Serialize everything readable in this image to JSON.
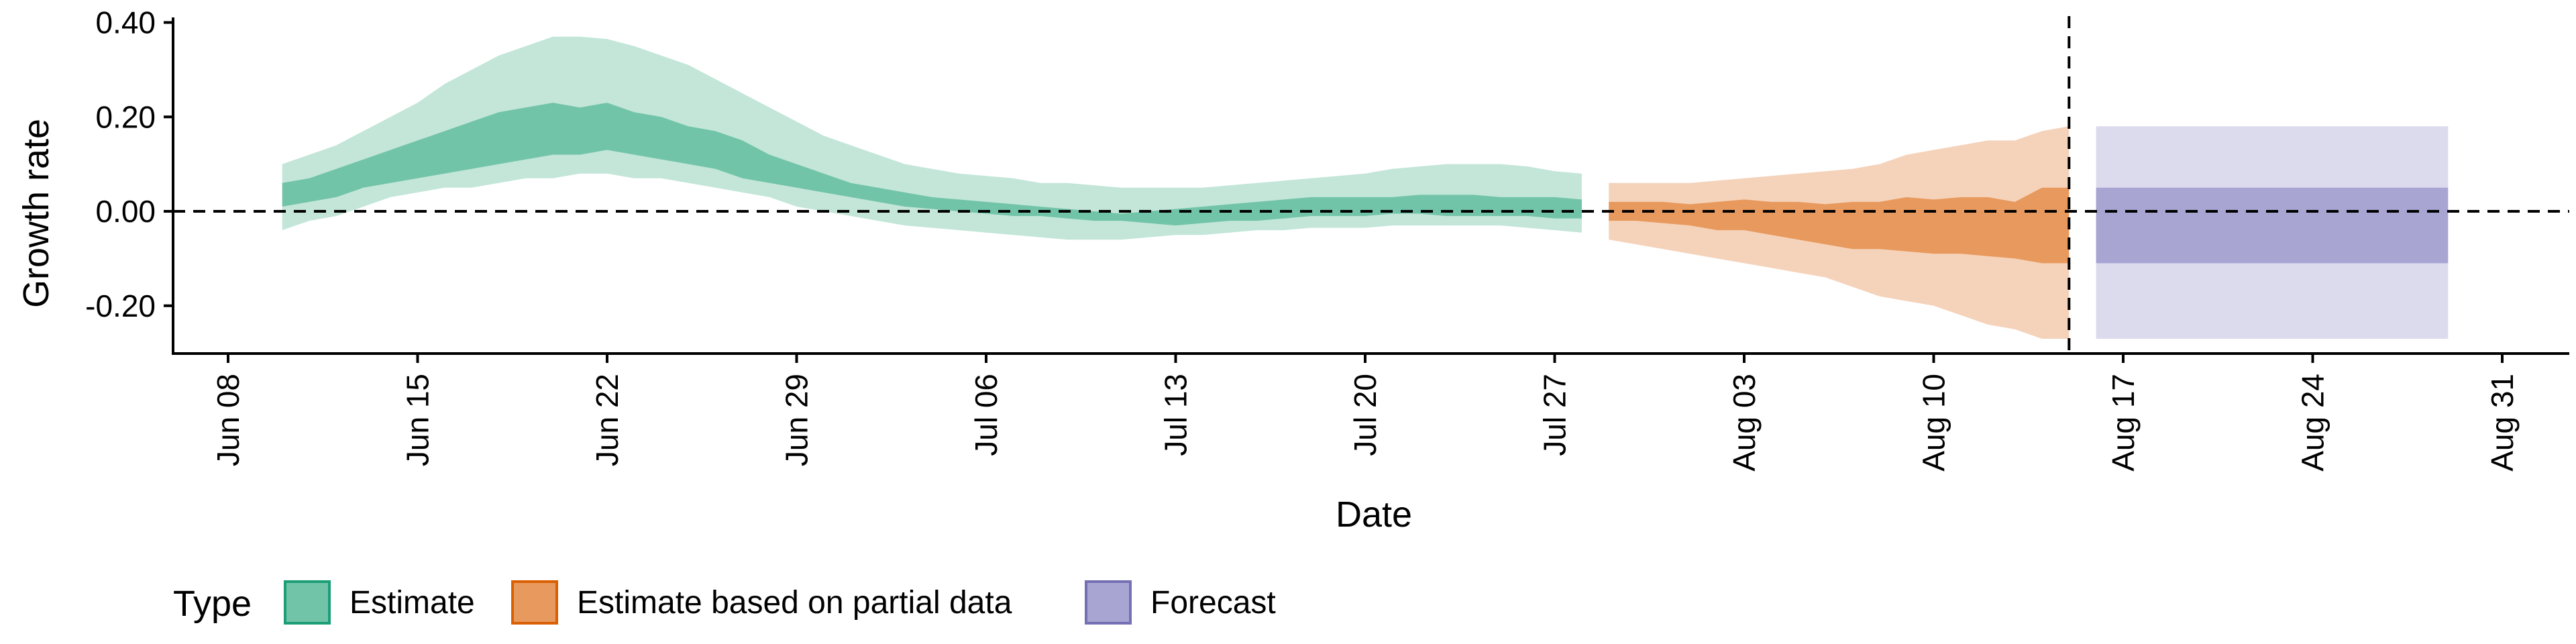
{
  "chart_data": {
    "type": "area",
    "xlabel": "Date",
    "ylabel": "Growth rate",
    "x_type": "date",
    "xlim": [
      "2020-06-05",
      "2020-09-01"
    ],
    "ylim": [
      -0.3,
      0.4
    ],
    "y_ticks": [
      {
        "value": 0.4,
        "label": "0.40"
      },
      {
        "value": 0.2,
        "label": "0.20"
      },
      {
        "value": 0.0,
        "label": "0.00"
      },
      {
        "value": -0.2,
        "label": "-0.20"
      }
    ],
    "x_ticks": [
      {
        "date": "2020-06-08",
        "label": "Jun 08"
      },
      {
        "date": "2020-06-15",
        "label": "Jun 15"
      },
      {
        "date": "2020-06-22",
        "label": "Jun 22"
      },
      {
        "date": "2020-06-29",
        "label": "Jun 29"
      },
      {
        "date": "2020-07-06",
        "label": "Jul 06"
      },
      {
        "date": "2020-07-13",
        "label": "Jul 13"
      },
      {
        "date": "2020-07-20",
        "label": "Jul 20"
      },
      {
        "date": "2020-07-27",
        "label": "Jul 27"
      },
      {
        "date": "2020-08-03",
        "label": "Aug 03"
      },
      {
        "date": "2020-08-10",
        "label": "Aug 10"
      },
      {
        "date": "2020-08-17",
        "label": "Aug 17"
      },
      {
        "date": "2020-08-24",
        "label": "Aug 24"
      },
      {
        "date": "2020-08-31",
        "label": "Aug 31"
      }
    ],
    "reference_lines": {
      "horizontal_y": 0.0,
      "vertical_date": "2020-08-15"
    },
    "legend": {
      "title": "Type",
      "position": "bottom",
      "entries": [
        {
          "label": "Estimate",
          "fill": "#72c4a8",
          "border": "#1b9e77"
        },
        {
          "label": "Estimate based on partial data",
          "fill": "#e89a5e",
          "border": "#d95f02"
        },
        {
          "label": "Forecast",
          "fill": "#a9a5d3",
          "border": "#7570b3"
        }
      ]
    },
    "series": [
      {
        "name": "Estimate",
        "color_outer": "#c3e6d9",
        "color_inner": "#72c4a8",
        "x": [
          "2020-06-10",
          "2020-06-11",
          "2020-06-12",
          "2020-06-13",
          "2020-06-14",
          "2020-06-15",
          "2020-06-16",
          "2020-06-17",
          "2020-06-18",
          "2020-06-19",
          "2020-06-20",
          "2020-06-21",
          "2020-06-22",
          "2020-06-23",
          "2020-06-24",
          "2020-06-25",
          "2020-06-26",
          "2020-06-27",
          "2020-06-28",
          "2020-06-29",
          "2020-06-30",
          "2020-07-01",
          "2020-07-02",
          "2020-07-03",
          "2020-07-04",
          "2020-07-05",
          "2020-07-06",
          "2020-07-07",
          "2020-07-08",
          "2020-07-09",
          "2020-07-10",
          "2020-07-11",
          "2020-07-12",
          "2020-07-13",
          "2020-07-14",
          "2020-07-15",
          "2020-07-16",
          "2020-07-17",
          "2020-07-18",
          "2020-07-19",
          "2020-07-20",
          "2020-07-21",
          "2020-07-22",
          "2020-07-23",
          "2020-07-24",
          "2020-07-25",
          "2020-07-26",
          "2020-07-27",
          "2020-07-28"
        ],
        "outer_upper": [
          0.1,
          0.12,
          0.14,
          0.17,
          0.2,
          0.23,
          0.27,
          0.3,
          0.33,
          0.35,
          0.37,
          0.37,
          0.365,
          0.35,
          0.33,
          0.31,
          0.28,
          0.25,
          0.22,
          0.19,
          0.16,
          0.14,
          0.12,
          0.1,
          0.09,
          0.08,
          0.075,
          0.07,
          0.06,
          0.06,
          0.055,
          0.05,
          0.05,
          0.05,
          0.05,
          0.055,
          0.06,
          0.065,
          0.07,
          0.075,
          0.08,
          0.09,
          0.095,
          0.1,
          0.1,
          0.1,
          0.095,
          0.085,
          0.08
        ],
        "inner_upper": [
          0.06,
          0.07,
          0.09,
          0.11,
          0.13,
          0.15,
          0.17,
          0.19,
          0.21,
          0.22,
          0.23,
          0.22,
          0.23,
          0.21,
          0.2,
          0.18,
          0.17,
          0.15,
          0.12,
          0.1,
          0.08,
          0.06,
          0.05,
          0.04,
          0.03,
          0.025,
          0.02,
          0.015,
          0.01,
          0.005,
          0.0,
          -0.005,
          0.0,
          0.005,
          0.01,
          0.015,
          0.02,
          0.025,
          0.03,
          0.03,
          0.03,
          0.03,
          0.035,
          0.035,
          0.035,
          0.03,
          0.03,
          0.03,
          0.025
        ],
        "inner_lower": [
          0.01,
          0.02,
          0.03,
          0.05,
          0.06,
          0.07,
          0.08,
          0.09,
          0.1,
          0.11,
          0.12,
          0.12,
          0.13,
          0.12,
          0.11,
          0.1,
          0.09,
          0.07,
          0.06,
          0.05,
          0.04,
          0.03,
          0.02,
          0.01,
          0.005,
          0.0,
          -0.005,
          -0.01,
          -0.01,
          -0.015,
          -0.02,
          -0.02,
          -0.025,
          -0.03,
          -0.025,
          -0.02,
          -0.02,
          -0.015,
          -0.01,
          -0.01,
          -0.01,
          -0.005,
          -0.005,
          -0.01,
          -0.01,
          -0.01,
          -0.01,
          -0.015,
          -0.015
        ],
        "outer_lower": [
          -0.04,
          -0.02,
          -0.01,
          0.01,
          0.03,
          0.04,
          0.05,
          0.05,
          0.06,
          0.07,
          0.07,
          0.08,
          0.08,
          0.07,
          0.07,
          0.06,
          0.05,
          0.04,
          0.03,
          0.01,
          0.0,
          -0.01,
          -0.02,
          -0.03,
          -0.035,
          -0.04,
          -0.045,
          -0.05,
          -0.055,
          -0.06,
          -0.06,
          -0.06,
          -0.055,
          -0.05,
          -0.05,
          -0.045,
          -0.04,
          -0.04,
          -0.035,
          -0.035,
          -0.035,
          -0.03,
          -0.03,
          -0.03,
          -0.03,
          -0.03,
          -0.035,
          -0.04,
          -0.045
        ]
      },
      {
        "name": "Estimate based on partial data",
        "color_outer": "#f5d3bb",
        "color_inner": "#e89a5e",
        "x": [
          "2020-07-29",
          "2020-07-30",
          "2020-07-31",
          "2020-08-01",
          "2020-08-02",
          "2020-08-03",
          "2020-08-04",
          "2020-08-05",
          "2020-08-06",
          "2020-08-07",
          "2020-08-08",
          "2020-08-09",
          "2020-08-10",
          "2020-08-11",
          "2020-08-12",
          "2020-08-13",
          "2020-08-14",
          "2020-08-15"
        ],
        "outer_upper": [
          0.06,
          0.06,
          0.06,
          0.06,
          0.065,
          0.07,
          0.075,
          0.08,
          0.085,
          0.09,
          0.1,
          0.12,
          0.13,
          0.14,
          0.15,
          0.15,
          0.17,
          0.18
        ],
        "inner_upper": [
          0.02,
          0.02,
          0.02,
          0.015,
          0.02,
          0.025,
          0.02,
          0.02,
          0.015,
          0.02,
          0.02,
          0.03,
          0.025,
          0.03,
          0.03,
          0.02,
          0.05,
          0.05
        ],
        "inner_lower": [
          -0.02,
          -0.02,
          -0.025,
          -0.03,
          -0.04,
          -0.04,
          -0.05,
          -0.06,
          -0.07,
          -0.08,
          -0.08,
          -0.085,
          -0.09,
          -0.09,
          -0.095,
          -0.1,
          -0.11,
          -0.11
        ],
        "outer_lower": [
          -0.06,
          -0.07,
          -0.08,
          -0.09,
          -0.1,
          -0.11,
          -0.12,
          -0.13,
          -0.14,
          -0.16,
          -0.18,
          -0.19,
          -0.2,
          -0.22,
          -0.24,
          -0.25,
          -0.27,
          -0.27
        ]
      },
      {
        "name": "Forecast",
        "color_outer": "#dcdaed",
        "color_inner": "#a9a5d3",
        "x": [
          "2020-08-16",
          "2020-08-29"
        ],
        "outer_upper": [
          0.18,
          0.18
        ],
        "inner_upper": [
          0.05,
          0.05
        ],
        "inner_lower": [
          -0.11,
          -0.11
        ],
        "outer_lower": [
          -0.27,
          -0.27
        ]
      }
    ]
  }
}
